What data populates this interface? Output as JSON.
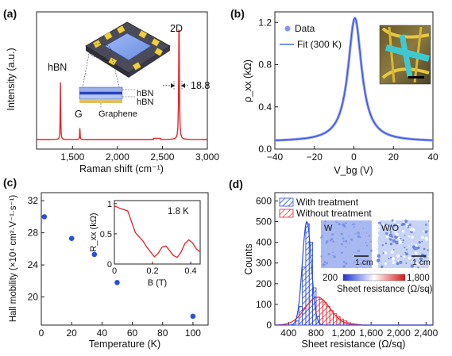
{
  "panels": {
    "a": {
      "letter": "(a)"
    },
    "b": {
      "letter": "(b)"
    },
    "c": {
      "letter": "(c)"
    },
    "d": {
      "letter": "(d)"
    }
  },
  "colors": {
    "red": "#e8202a",
    "blue": "#2a4fe0",
    "lightblue": "#8a92ee",
    "dark": "#222222"
  },
  "chart_data": [
    {
      "id": "a",
      "type": "line",
      "xlabel": "Raman shift (cm⁻¹)",
      "ylabel": "Intensity (a.u.)",
      "xlim": [
        1100,
        3000
      ],
      "xticks": [
        "1,500",
        "2,000",
        "2,500",
        "3,000"
      ],
      "xtick_values": [
        1500,
        2000,
        2500,
        3000
      ],
      "peaks": [
        {
          "label": "hBN",
          "x": 1366,
          "height": 0.45,
          "width": 6
        },
        {
          "label": "G",
          "x": 1582,
          "height": 0.09,
          "width": 6
        },
        {
          "label": "2D",
          "x": 2685,
          "height": 0.9,
          "width": 9.4
        }
      ],
      "annotations": {
        "fwhm": "18.8",
        "inset_labels": [
          "hBN",
          "hBN",
          "Graphene"
        ]
      }
    },
    {
      "id": "b",
      "type": "line",
      "xlabel": "V_bg (V)",
      "ylabel": "ρ_xx (kΩ)",
      "xlim": [
        -40,
        40
      ],
      "ylim": [
        0,
        1.3
      ],
      "xticks": [
        -40,
        -20,
        0,
        20,
        40
      ],
      "yticks": [
        0.0,
        0.4,
        0.8,
        1.2
      ],
      "series": [
        {
          "name": "Data",
          "peak": 1.24,
          "center": 0.5,
          "baseline": 0.07
        },
        {
          "name": "Fit (300 K)",
          "peak": 1.24,
          "center": 0.5,
          "baseline": 0.07
        }
      ]
    },
    {
      "id": "c",
      "type": "scatter",
      "xlabel": "Temperature (K)",
      "ylabel": "Hall mobility (×10⁴ cm²·V⁻¹·s⁻¹)",
      "xlim": [
        0,
        110
      ],
      "ylim": [
        16.5,
        33
      ],
      "xticks": [
        0,
        20,
        40,
        60,
        80,
        100
      ],
      "yticks": [
        20,
        24,
        28,
        32
      ],
      "points": [
        {
          "x": 2,
          "y": 30.0
        },
        {
          "x": 20,
          "y": 27.3
        },
        {
          "x": 35,
          "y": 25.3
        },
        {
          "x": 50,
          "y": 21.8
        },
        {
          "x": 100,
          "y": 17.6
        }
      ],
      "inset": {
        "label": "1.8 K",
        "xlabel": "B (T)",
        "ylabel": "R_xx (kΩ)",
        "xlim": [
          0,
          0.45
        ],
        "ylim": [
          0,
          1.05
        ],
        "xticks": [
          "0",
          "0.2",
          "0.4"
        ],
        "yticks": [
          "0",
          "0.5",
          "1"
        ],
        "x": [
          0,
          0.01,
          0.03,
          0.05,
          0.07,
          0.09,
          0.11,
          0.13,
          0.15,
          0.17,
          0.19,
          0.21,
          0.23,
          0.25,
          0.27,
          0.29,
          0.31,
          0.33,
          0.35,
          0.37,
          0.39,
          0.41,
          0.43,
          0.45
        ],
        "y": [
          0.96,
          0.95,
          0.92,
          0.9,
          0.88,
          0.7,
          0.52,
          0.45,
          0.38,
          0.28,
          0.2,
          0.12,
          0.18,
          0.28,
          0.3,
          0.22,
          0.14,
          0.11,
          0.2,
          0.34,
          0.4,
          0.35,
          0.25,
          0.2
        ]
      }
    },
    {
      "id": "d",
      "type": "bar",
      "xlabel": "Sheet resistance (Ω/sq)",
      "ylabel": "Counts",
      "xlim": [
        200,
        2500
      ],
      "ylim": [
        0,
        640
      ],
      "xticks": [
        400,
        800,
        1200,
        1600,
        2000,
        2400
      ],
      "xtick_labels": [
        "400",
        "800",
        "1,200",
        "1,600",
        "2,000",
        "2,400"
      ],
      "yticks": [
        0,
        100,
        200,
        300,
        400,
        500,
        600
      ],
      "bin_width": 50,
      "series": [
        {
          "name": "With treatment",
          "bins": [
            500,
            550,
            600,
            650,
            700,
            750,
            800
          ],
          "counts": [
            20,
            90,
            280,
            490,
            400,
            180,
            40
          ],
          "fit": {
            "mu": 665,
            "sigma": 65,
            "amp": 500
          }
        },
        {
          "name": "Without treatment",
          "bins": [
            500,
            550,
            600,
            650,
            700,
            750,
            800,
            850,
            900,
            950,
            1000,
            1050,
            1100,
            1150,
            1200,
            1250,
            1300,
            1350,
            1400
          ],
          "counts": [
            10,
            25,
            55,
            80,
            110,
            130,
            135,
            125,
            110,
            90,
            70,
            55,
            40,
            28,
            20,
            12,
            8,
            5,
            3
          ],
          "fit": {
            "mu": 820,
            "sigma": 180,
            "amp": 135
          }
        }
      ],
      "inset": {
        "labels": [
          "W",
          "W/O"
        ],
        "scale": "1 cm",
        "colorbar_min": "200",
        "colorbar_max": "1,800",
        "colorbar_label": "Sheet resistance (Ω/sq)"
      }
    }
  ]
}
